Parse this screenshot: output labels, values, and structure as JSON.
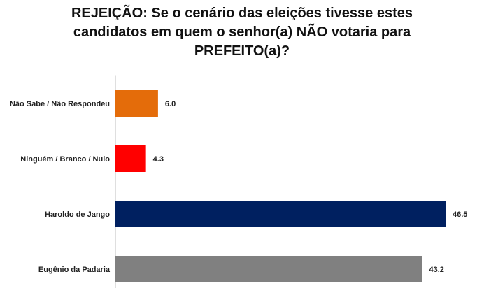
{
  "chart_data": {
    "type": "bar",
    "orientation": "horizontal",
    "title": "REJEIÇÃO: Se o cenário das eleições tivesse estes candidatos em quem o senhor(a) NÃO votaria para PREFEITO(a)?",
    "categories": [
      "Não Sabe / Não Respondeu",
      "Ninguém / Branco / Nulo",
      "Haroldo de Jango",
      "Eugênio da Padaria"
    ],
    "values": [
      6.0,
      4.3,
      46.5,
      43.2
    ],
    "value_labels": [
      "6.0",
      "4.3",
      "46.5",
      "43.2"
    ],
    "colors": [
      "#E46C0A",
      "#FF0000",
      "#002060",
      "#808080"
    ],
    "xlim": [
      0,
      46.5
    ],
    "grid": false,
    "legend": "none"
  }
}
